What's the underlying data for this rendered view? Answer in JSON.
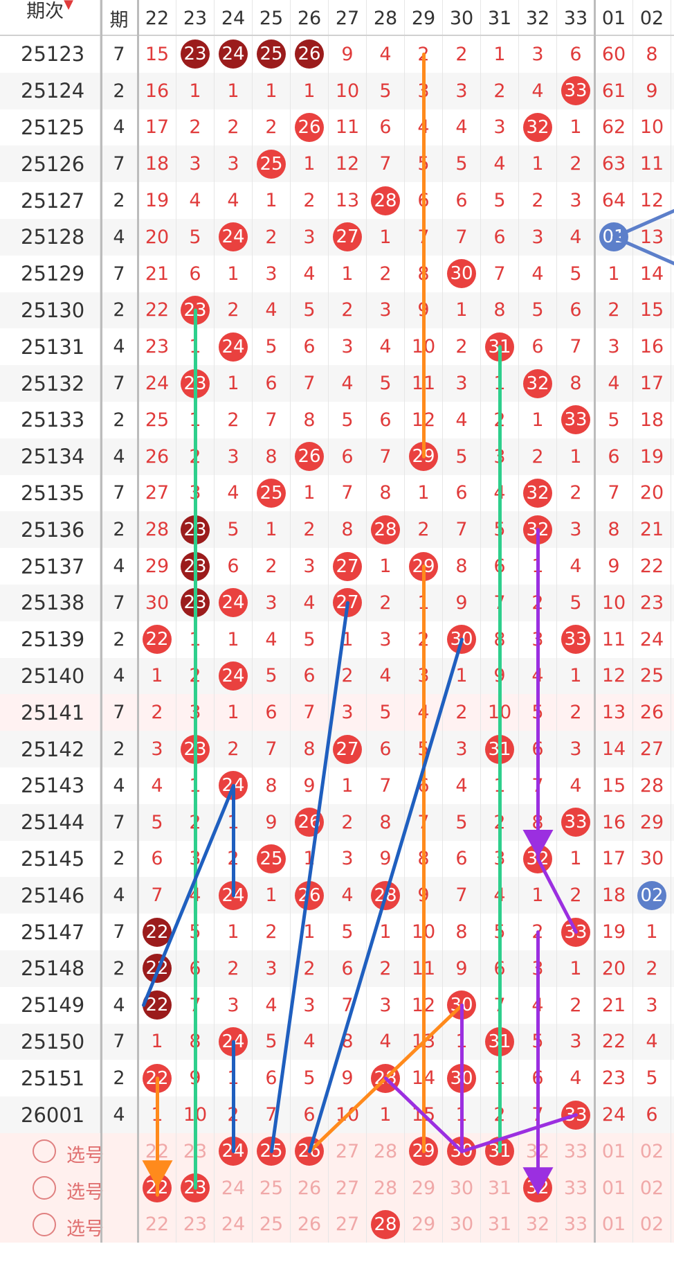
{
  "header": {
    "period_label": "期次",
    "sort_indicator": "▼",
    "sub_label": "期",
    "columns": [
      "22",
      "23",
      "24",
      "25",
      "26",
      "27",
      "28",
      "29",
      "30",
      "31",
      "32",
      "33",
      "01",
      "02"
    ]
  },
  "rows": [
    {
      "period": "25123",
      "sub": "7",
      "cells": [
        "15",
        {
          "b": "23",
          "c": "dark"
        },
        {
          "b": "24",
          "c": "dark"
        },
        {
          "b": "25",
          "c": "dark"
        },
        {
          "b": "26",
          "c": "dark"
        },
        "9",
        "4",
        "2",
        "2",
        "1",
        "3",
        "6",
        "60",
        "8"
      ]
    },
    {
      "period": "25124",
      "sub": "2",
      "cells": [
        "16",
        "1",
        "1",
        "1",
        "1",
        "10",
        "5",
        "3",
        "3",
        "2",
        "4",
        {
          "b": "33",
          "c": "red"
        },
        "61",
        "9"
      ]
    },
    {
      "period": "25125",
      "sub": "4",
      "cells": [
        "17",
        "2",
        "2",
        "2",
        {
          "b": "26",
          "c": "red"
        },
        "11",
        "6",
        "4",
        "4",
        "3",
        {
          "b": "32",
          "c": "red"
        },
        "1",
        "62",
        "10"
      ]
    },
    {
      "period": "25126",
      "sub": "7",
      "cells": [
        "18",
        "3",
        "3",
        {
          "b": "25",
          "c": "red"
        },
        "1",
        "12",
        "7",
        "5",
        "5",
        "4",
        "1",
        "2",
        "63",
        "11"
      ]
    },
    {
      "period": "25127",
      "sub": "2",
      "cells": [
        "19",
        "4",
        "4",
        "1",
        "2",
        "13",
        {
          "b": "28",
          "c": "red"
        },
        "6",
        "6",
        "5",
        "2",
        "3",
        "64",
        "12"
      ]
    },
    {
      "period": "25128",
      "sub": "4",
      "cells": [
        "20",
        "5",
        {
          "b": "24",
          "c": "red"
        },
        "2",
        "3",
        {
          "b": "27",
          "c": "red"
        },
        "1",
        "7",
        "7",
        "6",
        "3",
        "4",
        {
          "b": "01",
          "c": "blue"
        },
        "13"
      ]
    },
    {
      "period": "25129",
      "sub": "7",
      "cells": [
        "21",
        "6",
        "1",
        "3",
        "4",
        "1",
        "2",
        "8",
        {
          "b": "30",
          "c": "red"
        },
        "7",
        "4",
        "5",
        "1",
        "14"
      ]
    },
    {
      "period": "25130",
      "sub": "2",
      "cells": [
        "22",
        {
          "b": "23",
          "c": "red"
        },
        "2",
        "4",
        "5",
        "2",
        "3",
        "9",
        "1",
        "8",
        "5",
        "6",
        "2",
        "15"
      ]
    },
    {
      "period": "25131",
      "sub": "4",
      "cells": [
        "23",
        "1",
        {
          "b": "24",
          "c": "red"
        },
        "5",
        "6",
        "3",
        "4",
        "10",
        "2",
        {
          "b": "31",
          "c": "red"
        },
        "6",
        "7",
        "3",
        "16"
      ]
    },
    {
      "period": "25132",
      "sub": "7",
      "cells": [
        "24",
        {
          "b": "23",
          "c": "red"
        },
        "1",
        "6",
        "7",
        "4",
        "5",
        "11",
        "3",
        "1",
        {
          "b": "32",
          "c": "red"
        },
        "8",
        "4",
        "17"
      ]
    },
    {
      "period": "25133",
      "sub": "2",
      "cells": [
        "25",
        "1",
        "2",
        "7",
        "8",
        "5",
        "6",
        "12",
        "4",
        "2",
        "1",
        {
          "b": "33",
          "c": "red"
        },
        "5",
        "18"
      ]
    },
    {
      "period": "25134",
      "sub": "4",
      "cells": [
        "26",
        "2",
        "3",
        "8",
        {
          "b": "26",
          "c": "red"
        },
        "6",
        "7",
        {
          "b": "29",
          "c": "red"
        },
        "5",
        "3",
        "2",
        "1",
        "6",
        "19"
      ]
    },
    {
      "period": "25135",
      "sub": "7",
      "cells": [
        "27",
        "3",
        "4",
        {
          "b": "25",
          "c": "red"
        },
        "1",
        "7",
        "8",
        "1",
        "6",
        "4",
        {
          "b": "32",
          "c": "red"
        },
        "2",
        "7",
        "20"
      ]
    },
    {
      "period": "25136",
      "sub": "2",
      "cells": [
        "28",
        {
          "b": "23",
          "c": "dark"
        },
        "5",
        "1",
        "2",
        "8",
        {
          "b": "28",
          "c": "red"
        },
        "2",
        "7",
        "5",
        {
          "b": "32",
          "c": "red"
        },
        "3",
        "8",
        "21"
      ]
    },
    {
      "period": "25137",
      "sub": "4",
      "cells": [
        "29",
        {
          "b": "23",
          "c": "dark"
        },
        "6",
        "2",
        "3",
        {
          "b": "27",
          "c": "red"
        },
        "1",
        {
          "b": "29",
          "c": "red"
        },
        "8",
        "6",
        "1",
        "4",
        "9",
        "22"
      ]
    },
    {
      "period": "25138",
      "sub": "7",
      "cells": [
        "30",
        {
          "b": "23",
          "c": "dark"
        },
        {
          "b": "24",
          "c": "red"
        },
        "3",
        "4",
        {
          "b": "27",
          "c": "red"
        },
        "2",
        "1",
        "9",
        "7",
        "2",
        "5",
        "10",
        "23"
      ]
    },
    {
      "period": "25139",
      "sub": "2",
      "cells": [
        {
          "b": "22",
          "c": "red"
        },
        "1",
        "1",
        "4",
        "5",
        "1",
        "3",
        "2",
        {
          "b": "30",
          "c": "red"
        },
        "8",
        "3",
        {
          "b": "33",
          "c": "red"
        },
        "11",
        "24"
      ]
    },
    {
      "period": "25140",
      "sub": "4",
      "cells": [
        "1",
        "2",
        {
          "b": "24",
          "c": "red"
        },
        "5",
        "6",
        "2",
        "4",
        "3",
        "1",
        "9",
        "4",
        "1",
        "12",
        "25"
      ]
    },
    {
      "period": "25141",
      "sub": "7",
      "cells": [
        "2",
        "3",
        "1",
        "6",
        "7",
        "3",
        "5",
        "4",
        "2",
        "10",
        "5",
        "2",
        "13",
        "26"
      ]
    },
    {
      "period": "25142",
      "sub": "2",
      "cells": [
        "3",
        {
          "b": "23",
          "c": "red"
        },
        "2",
        "7",
        "8",
        {
          "b": "27",
          "c": "red"
        },
        "6",
        "5",
        "3",
        {
          "b": "31",
          "c": "red"
        },
        "6",
        "3",
        "14",
        "27"
      ]
    },
    {
      "period": "25143",
      "sub": "4",
      "cells": [
        "4",
        "1",
        {
          "b": "24",
          "c": "red"
        },
        "8",
        "9",
        "1",
        "7",
        "6",
        "4",
        "1",
        "7",
        "4",
        "15",
        "28"
      ]
    },
    {
      "period": "25144",
      "sub": "7",
      "cells": [
        "5",
        "2",
        "1",
        "9",
        {
          "b": "26",
          "c": "red"
        },
        "2",
        "8",
        "7",
        "5",
        "2",
        "8",
        {
          "b": "33",
          "c": "red"
        },
        "16",
        "29"
      ]
    },
    {
      "period": "25145",
      "sub": "2",
      "cells": [
        "6",
        "3",
        "2",
        {
          "b": "25",
          "c": "red"
        },
        "1",
        "3",
        "9",
        "8",
        "6",
        "3",
        {
          "b": "32",
          "c": "red"
        },
        "1",
        "17",
        "30"
      ]
    },
    {
      "period": "25146",
      "sub": "4",
      "cells": [
        "7",
        "4",
        {
          "b": "24",
          "c": "red"
        },
        "1",
        {
          "b": "26",
          "c": "red"
        },
        "4",
        {
          "b": "28",
          "c": "red"
        },
        "9",
        "7",
        "4",
        "1",
        "2",
        "18",
        {
          "b": "02",
          "c": "blue"
        }
      ]
    },
    {
      "period": "25147",
      "sub": "7",
      "cells": [
        {
          "b": "22",
          "c": "dark"
        },
        "5",
        "1",
        "2",
        "1",
        "5",
        "1",
        "10",
        "8",
        "5",
        "2",
        {
          "b": "33",
          "c": "red"
        },
        "19",
        "1"
      ]
    },
    {
      "period": "25148",
      "sub": "2",
      "cells": [
        {
          "b": "22",
          "c": "dark"
        },
        "6",
        "2",
        "3",
        "2",
        "6",
        "2",
        "11",
        "9",
        "6",
        "3",
        "1",
        "20",
        "2"
      ]
    },
    {
      "period": "25149",
      "sub": "4",
      "cells": [
        {
          "b": "22",
          "c": "dark"
        },
        "7",
        "3",
        "4",
        "3",
        "7",
        "3",
        "12",
        {
          "b": "30",
          "c": "red"
        },
        "7",
        "4",
        "2",
        "21",
        "3"
      ]
    },
    {
      "period": "25150",
      "sub": "7",
      "cells": [
        "1",
        "8",
        {
          "b": "24",
          "c": "red"
        },
        "5",
        "4",
        "8",
        "4",
        "13",
        "1",
        {
          "b": "31",
          "c": "red"
        },
        "5",
        "3",
        "22",
        "4"
      ]
    },
    {
      "period": "25151",
      "sub": "2",
      "cells": [
        {
          "b": "22",
          "c": "red"
        },
        "9",
        "1",
        "6",
        "5",
        "9",
        {
          "b": "28",
          "c": "red"
        },
        "14",
        {
          "b": "30",
          "c": "red"
        },
        "1",
        "6",
        "4",
        "23",
        "5"
      ]
    },
    {
      "period": "26001",
      "sub": "4",
      "cells": [
        "1",
        "10",
        "2",
        "7",
        "6",
        "10",
        "1",
        "15",
        "1",
        "2",
        "7",
        {
          "b": "33",
          "c": "red"
        },
        "24",
        "6"
      ]
    }
  ],
  "select_rows": [
    {
      "label": "选号",
      "cells": [
        "22",
        "23",
        {
          "b": "24",
          "c": "red"
        },
        {
          "b": "25",
          "c": "red"
        },
        {
          "b": "26",
          "c": "red"
        },
        "27",
        "28",
        {
          "b": "29",
          "c": "red"
        },
        {
          "b": "30",
          "c": "red"
        },
        {
          "b": "31",
          "c": "red"
        },
        "32",
        "33",
        "01",
        "02"
      ]
    },
    {
      "label": "选号",
      "cells": [
        {
          "b": "22",
          "c": "red"
        },
        {
          "b": "23",
          "c": "red"
        },
        "24",
        "25",
        "26",
        "27",
        "28",
        "29",
        "30",
        "31",
        {
          "b": "32",
          "c": "red"
        },
        "33",
        "01",
        "02"
      ]
    },
    {
      "label": "选号",
      "cells": [
        "22",
        "23",
        "24",
        "25",
        "26",
        "27",
        {
          "b": "28",
          "c": "red"
        },
        "29",
        "30",
        "31",
        "32",
        "33",
        "01",
        "02"
      ]
    }
  ],
  "colors": {
    "red": "#e9413f",
    "dark": "#9b1c1c",
    "blue": "#5c7fca",
    "orange": "#ff8a1c",
    "green": "#2ecf8c",
    "navy": "#1f5fbf",
    "purple": "#9b2fe0"
  }
}
